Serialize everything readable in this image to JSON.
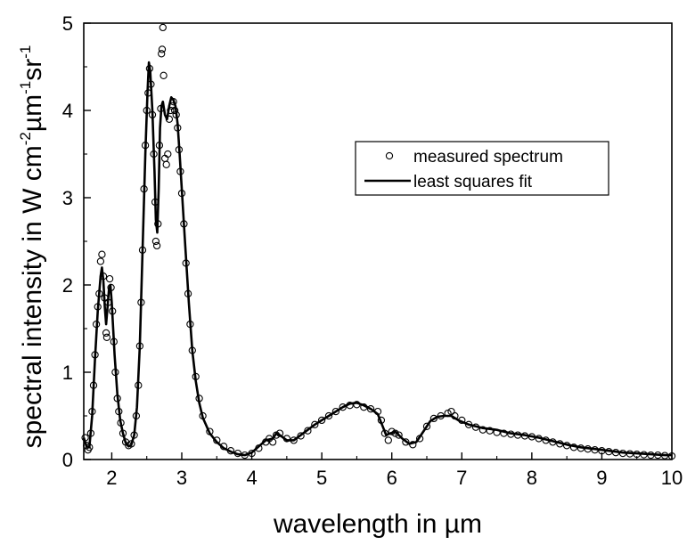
{
  "chart_data": {
    "type": "scatter",
    "xlabel": "wavelength in µm",
    "ylabel": {
      "parts": [
        {
          "text": "spectral intensity in W cm",
          "sup": false
        },
        {
          "text": "-2",
          "sup": true
        },
        {
          "text": "µm",
          "sup": false
        },
        {
          "text": "-1",
          "sup": true
        },
        {
          "text": "sr",
          "sup": false
        },
        {
          "text": "-1",
          "sup": true
        }
      ]
    },
    "xlim": [
      1.6,
      10
    ],
    "ylim": [
      0,
      5
    ],
    "x_ticks": [
      2,
      3,
      4,
      5,
      6,
      7,
      8,
      9,
      10
    ],
    "x_tick_labels": [
      "2",
      "3",
      "4",
      "5",
      "6",
      "7",
      "8",
      "9",
      "10"
    ],
    "y_ticks": [
      0,
      1,
      2,
      3,
      4,
      5
    ],
    "y_tick_labels": [
      "0",
      "1",
      "2",
      "3",
      "4",
      "5"
    ],
    "legend": {
      "position": "right-middle"
    },
    "series": [
      {
        "name": "measured spectrum",
        "marker": "open-circle",
        "color": "#000000",
        "points": [
          [
            1.62,
            0.25
          ],
          [
            1.64,
            0.16
          ],
          [
            1.66,
            0.11
          ],
          [
            1.68,
            0.14
          ],
          [
            1.7,
            0.3
          ],
          [
            1.72,
            0.55
          ],
          [
            1.74,
            0.85
          ],
          [
            1.76,
            1.2
          ],
          [
            1.78,
            1.55
          ],
          [
            1.8,
            1.75
          ],
          [
            1.82,
            1.9
          ],
          [
            1.84,
            2.27
          ],
          [
            1.86,
            2.35
          ],
          [
            1.88,
            2.1
          ],
          [
            1.9,
            1.85
          ],
          [
            1.92,
            1.45
          ],
          [
            1.93,
            1.4
          ],
          [
            1.95,
            1.8
          ],
          [
            1.97,
            2.07
          ],
          [
            1.99,
            1.97
          ],
          [
            2.01,
            1.7
          ],
          [
            2.03,
            1.35
          ],
          [
            2.05,
            1.0
          ],
          [
            2.08,
            0.7
          ],
          [
            2.1,
            0.55
          ],
          [
            2.13,
            0.42
          ],
          [
            2.16,
            0.3
          ],
          [
            2.2,
            0.2
          ],
          [
            2.24,
            0.16
          ],
          [
            2.28,
            0.18
          ],
          [
            2.32,
            0.28
          ],
          [
            2.35,
            0.5
          ],
          [
            2.38,
            0.85
          ],
          [
            2.4,
            1.3
          ],
          [
            2.42,
            1.8
          ],
          [
            2.44,
            2.4
          ],
          [
            2.46,
            3.1
          ],
          [
            2.48,
            3.6
          ],
          [
            2.5,
            4.0
          ],
          [
            2.52,
            4.2
          ],
          [
            2.54,
            4.48
          ],
          [
            2.56,
            4.3
          ],
          [
            2.58,
            3.95
          ],
          [
            2.6,
            3.5
          ],
          [
            2.62,
            2.95
          ],
          [
            2.63,
            2.5
          ],
          [
            2.645,
            2.45
          ],
          [
            2.66,
            2.7
          ],
          [
            2.68,
            3.6
          ],
          [
            2.7,
            4.02
          ],
          [
            2.71,
            4.65
          ],
          [
            2.72,
            4.7
          ],
          [
            2.73,
            4.95
          ],
          [
            2.74,
            4.4
          ],
          [
            2.76,
            3.45
          ],
          [
            2.78,
            3.38
          ],
          [
            2.8,
            3.5
          ],
          [
            2.82,
            3.9
          ],
          [
            2.84,
            4.0
          ],
          [
            2.86,
            4.05
          ],
          [
            2.88,
            4.1
          ],
          [
            2.9,
            4.0
          ],
          [
            2.92,
            3.95
          ],
          [
            2.94,
            3.8
          ],
          [
            2.96,
            3.55
          ],
          [
            2.98,
            3.3
          ],
          [
            3.0,
            3.05
          ],
          [
            3.03,
            2.7
          ],
          [
            3.06,
            2.25
          ],
          [
            3.09,
            1.9
          ],
          [
            3.12,
            1.55
          ],
          [
            3.15,
            1.25
          ],
          [
            3.2,
            0.95
          ],
          [
            3.25,
            0.7
          ],
          [
            3.3,
            0.5
          ],
          [
            3.4,
            0.32
          ],
          [
            3.5,
            0.22
          ],
          [
            3.6,
            0.15
          ],
          [
            3.7,
            0.1
          ],
          [
            3.8,
            0.07
          ],
          [
            3.9,
            0.05
          ],
          [
            4.0,
            0.07
          ],
          [
            4.1,
            0.13
          ],
          [
            4.2,
            0.2
          ],
          [
            4.25,
            0.24
          ],
          [
            4.3,
            0.2
          ],
          [
            4.35,
            0.28
          ],
          [
            4.4,
            0.3
          ],
          [
            4.5,
            0.24
          ],
          [
            4.6,
            0.22
          ],
          [
            4.7,
            0.27
          ],
          [
            4.8,
            0.33
          ],
          [
            4.9,
            0.4
          ],
          [
            5.0,
            0.45
          ],
          [
            5.1,
            0.5
          ],
          [
            5.2,
            0.55
          ],
          [
            5.3,
            0.6
          ],
          [
            5.4,
            0.62
          ],
          [
            5.5,
            0.63
          ],
          [
            5.6,
            0.6
          ],
          [
            5.7,
            0.58
          ],
          [
            5.8,
            0.55
          ],
          [
            5.85,
            0.45
          ],
          [
            5.9,
            0.3
          ],
          [
            5.95,
            0.22
          ],
          [
            6.0,
            0.32
          ],
          [
            6.05,
            0.3
          ],
          [
            6.1,
            0.28
          ],
          [
            6.2,
            0.2
          ],
          [
            6.3,
            0.17
          ],
          [
            6.4,
            0.24
          ],
          [
            6.5,
            0.38
          ],
          [
            6.6,
            0.47
          ],
          [
            6.7,
            0.5
          ],
          [
            6.8,
            0.53
          ],
          [
            6.85,
            0.55
          ],
          [
            6.9,
            0.5
          ],
          [
            7.0,
            0.45
          ],
          [
            7.1,
            0.4
          ],
          [
            7.2,
            0.37
          ],
          [
            7.3,
            0.34
          ],
          [
            7.4,
            0.33
          ],
          [
            7.5,
            0.31
          ],
          [
            7.6,
            0.3
          ],
          [
            7.7,
            0.29
          ],
          [
            7.8,
            0.28
          ],
          [
            7.9,
            0.27
          ],
          [
            8.0,
            0.26
          ],
          [
            8.1,
            0.24
          ],
          [
            8.2,
            0.22
          ],
          [
            8.3,
            0.2
          ],
          [
            8.4,
            0.18
          ],
          [
            8.5,
            0.16
          ],
          [
            8.6,
            0.14
          ],
          [
            8.7,
            0.13
          ],
          [
            8.8,
            0.12
          ],
          [
            8.9,
            0.11
          ],
          [
            9.0,
            0.1
          ],
          [
            9.1,
            0.09
          ],
          [
            9.2,
            0.08
          ],
          [
            9.3,
            0.07
          ],
          [
            9.4,
            0.065
          ],
          [
            9.5,
            0.06
          ],
          [
            9.6,
            0.055
          ],
          [
            9.7,
            0.05
          ],
          [
            9.8,
            0.05
          ],
          [
            9.9,
            0.045
          ],
          [
            10.0,
            0.04
          ]
        ]
      },
      {
        "name": "least squares fit",
        "marker": "line",
        "color": "#000000",
        "points": [
          [
            1.6,
            0.25
          ],
          [
            1.64,
            0.15
          ],
          [
            1.68,
            0.14
          ],
          [
            1.72,
            0.5
          ],
          [
            1.76,
            1.15
          ],
          [
            1.8,
            1.7
          ],
          [
            1.84,
            2.1
          ],
          [
            1.86,
            2.2
          ],
          [
            1.88,
            2.05
          ],
          [
            1.9,
            1.75
          ],
          [
            1.92,
            1.55
          ],
          [
            1.94,
            1.75
          ],
          [
            1.96,
            1.95
          ],
          [
            1.98,
            2.0
          ],
          [
            2.0,
            1.8
          ],
          [
            2.04,
            1.2
          ],
          [
            2.08,
            0.75
          ],
          [
            2.12,
            0.45
          ],
          [
            2.16,
            0.3
          ],
          [
            2.2,
            0.19
          ],
          [
            2.24,
            0.15
          ],
          [
            2.28,
            0.17
          ],
          [
            2.32,
            0.28
          ],
          [
            2.36,
            0.6
          ],
          [
            2.4,
            1.3
          ],
          [
            2.44,
            2.4
          ],
          [
            2.48,
            3.5
          ],
          [
            2.51,
            4.2
          ],
          [
            2.53,
            4.55
          ],
          [
            2.55,
            4.45
          ],
          [
            2.58,
            4.0
          ],
          [
            2.61,
            3.3
          ],
          [
            2.63,
            2.75
          ],
          [
            2.65,
            2.6
          ],
          [
            2.67,
            3.1
          ],
          [
            2.69,
            3.8
          ],
          [
            2.71,
            4.05
          ],
          [
            2.73,
            4.1
          ],
          [
            2.76,
            3.95
          ],
          [
            2.79,
            3.9
          ],
          [
            2.82,
            4.05
          ],
          [
            2.85,
            4.15
          ],
          [
            2.88,
            4.12
          ],
          [
            2.91,
            4.05
          ],
          [
            2.94,
            3.85
          ],
          [
            2.97,
            3.5
          ],
          [
            3.0,
            3.1
          ],
          [
            3.05,
            2.45
          ],
          [
            3.1,
            1.8
          ],
          [
            3.15,
            1.25
          ],
          [
            3.2,
            0.9
          ],
          [
            3.25,
            0.65
          ],
          [
            3.3,
            0.48
          ],
          [
            3.4,
            0.3
          ],
          [
            3.5,
            0.2
          ],
          [
            3.6,
            0.13
          ],
          [
            3.7,
            0.09
          ],
          [
            3.8,
            0.06
          ],
          [
            3.9,
            0.05
          ],
          [
            4.0,
            0.08
          ],
          [
            4.1,
            0.15
          ],
          [
            4.2,
            0.22
          ],
          [
            4.3,
            0.24
          ],
          [
            4.35,
            0.3
          ],
          [
            4.4,
            0.28
          ],
          [
            4.5,
            0.22
          ],
          [
            4.6,
            0.22
          ],
          [
            4.7,
            0.28
          ],
          [
            4.8,
            0.34
          ],
          [
            4.9,
            0.4
          ],
          [
            5.0,
            0.45
          ],
          [
            5.1,
            0.5
          ],
          [
            5.2,
            0.55
          ],
          [
            5.3,
            0.6
          ],
          [
            5.4,
            0.64
          ],
          [
            5.5,
            0.65
          ],
          [
            5.6,
            0.62
          ],
          [
            5.7,
            0.58
          ],
          [
            5.8,
            0.52
          ],
          [
            5.86,
            0.4
          ],
          [
            5.92,
            0.28
          ],
          [
            5.98,
            0.3
          ],
          [
            6.05,
            0.32
          ],
          [
            6.15,
            0.24
          ],
          [
            6.25,
            0.18
          ],
          [
            6.35,
            0.2
          ],
          [
            6.45,
            0.32
          ],
          [
            6.55,
            0.44
          ],
          [
            6.65,
            0.49
          ],
          [
            6.75,
            0.5
          ],
          [
            6.85,
            0.5
          ],
          [
            6.95,
            0.45
          ],
          [
            7.1,
            0.4
          ],
          [
            7.3,
            0.36
          ],
          [
            7.5,
            0.34
          ],
          [
            7.7,
            0.3
          ],
          [
            7.9,
            0.28
          ],
          [
            8.1,
            0.25
          ],
          [
            8.3,
            0.21
          ],
          [
            8.5,
            0.17
          ],
          [
            8.7,
            0.14
          ],
          [
            8.9,
            0.12
          ],
          [
            9.1,
            0.1
          ],
          [
            9.3,
            0.08
          ],
          [
            9.5,
            0.07
          ],
          [
            9.7,
            0.06
          ],
          [
            9.9,
            0.05
          ],
          [
            10.0,
            0.05
          ]
        ]
      }
    ]
  }
}
